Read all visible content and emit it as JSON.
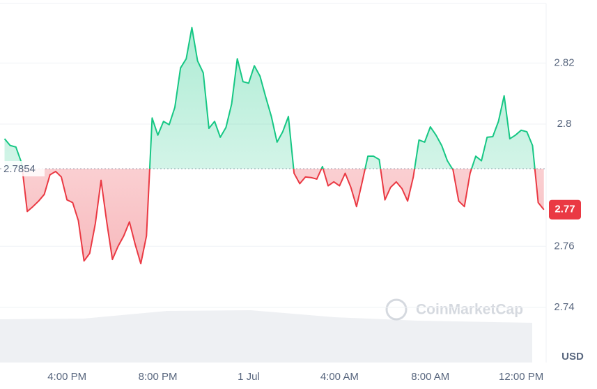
{
  "chart_data": {
    "type": "line",
    "x": [
      13.25,
      13.5,
      13.75,
      14,
      14.25,
      14.5,
      14.75,
      15,
      15.25,
      15.5,
      15.75,
      16,
      16.25,
      16.5,
      16.75,
      17,
      17.25,
      17.5,
      17.75,
      18,
      18.25,
      18.5,
      18.75,
      19,
      19.25,
      19.5,
      19.75,
      20,
      20.25,
      20.5,
      20.75,
      21,
      21.25,
      21.5,
      21.75,
      22,
      22.25,
      22.5,
      22.75,
      23,
      23.25,
      23.5,
      23.75,
      24,
      24.25,
      24.5,
      24.75,
      25,
      25.25,
      25.5,
      25.75,
      26,
      26.25,
      26.5,
      26.75,
      27,
      27.25,
      27.5,
      27.75,
      28,
      28.25,
      28.5,
      28.75,
      29,
      29.25,
      29.5,
      29.75,
      30,
      30.25,
      30.5,
      30.75,
      31,
      31.25,
      31.5,
      31.75,
      32,
      32.25,
      32.5,
      32.75,
      33,
      33.25,
      33.5,
      33.75,
      34,
      34.25,
      34.5,
      34.75,
      35,
      35.25,
      35.5,
      35.75,
      36,
      36.25,
      36.5,
      36.75,
      37
    ],
    "series": [
      {
        "name": "USD",
        "up_color": "#16c784",
        "down_color": "#ea3943",
        "values": [
          2.7952,
          2.793,
          2.7925,
          2.7873,
          2.7714,
          2.773,
          2.7748,
          2.777,
          2.7834,
          2.7845,
          2.7827,
          2.7752,
          2.7743,
          2.7684,
          2.7552,
          2.7577,
          2.7675,
          2.7816,
          2.768,
          2.7557,
          2.76,
          2.7634,
          2.768,
          2.7607,
          2.7543,
          2.7634,
          2.802,
          2.7964,
          2.8009,
          2.7998,
          2.8055,
          2.8184,
          2.8214,
          2.8316,
          2.8207,
          2.8168,
          2.7986,
          2.8009,
          2.7957,
          2.7989,
          2.8066,
          2.8214,
          2.8139,
          2.8134,
          2.8191,
          2.8157,
          2.8089,
          2.8025,
          2.7941,
          2.7975,
          2.8025,
          2.7839,
          2.7805,
          2.7827,
          2.7825,
          2.782,
          2.7861,
          2.7798,
          2.7811,
          2.7798,
          2.7839,
          2.7793,
          2.773,
          2.7811,
          2.7895,
          2.7895,
          2.7884,
          2.7752,
          2.7793,
          2.7811,
          2.7789,
          2.7748,
          2.7827,
          2.7948,
          2.7941,
          2.7991,
          2.7964,
          2.793,
          2.788,
          2.785,
          2.7748,
          2.773,
          2.7839,
          2.7895,
          2.788,
          2.7957,
          2.7959,
          2.8009,
          2.8093,
          2.7952,
          2.7964,
          2.798,
          2.7975,
          2.793,
          2.7743,
          2.772
        ]
      }
    ],
    "baseline": 2.7854,
    "price_label": "2.77",
    "watermark": "CoinMarketCap",
    "xlim": [
      13.05,
      37.1
    ],
    "xticks": [
      {
        "value": 16,
        "label": "4:00 PM"
      },
      {
        "value": 20,
        "label": "8:00 PM"
      },
      {
        "value": 24,
        "label": "1 Jul"
      },
      {
        "value": 28,
        "label": "4:00 AM"
      },
      {
        "value": 32,
        "label": "8:00 AM"
      },
      {
        "value": 36,
        "label": "12:00 PM"
      }
    ],
    "ylim": [
      2.7345,
      2.8395
    ],
    "yticks": [
      2.74,
      2.76,
      2.8,
      2.82
    ],
    "grid": true
  }
}
